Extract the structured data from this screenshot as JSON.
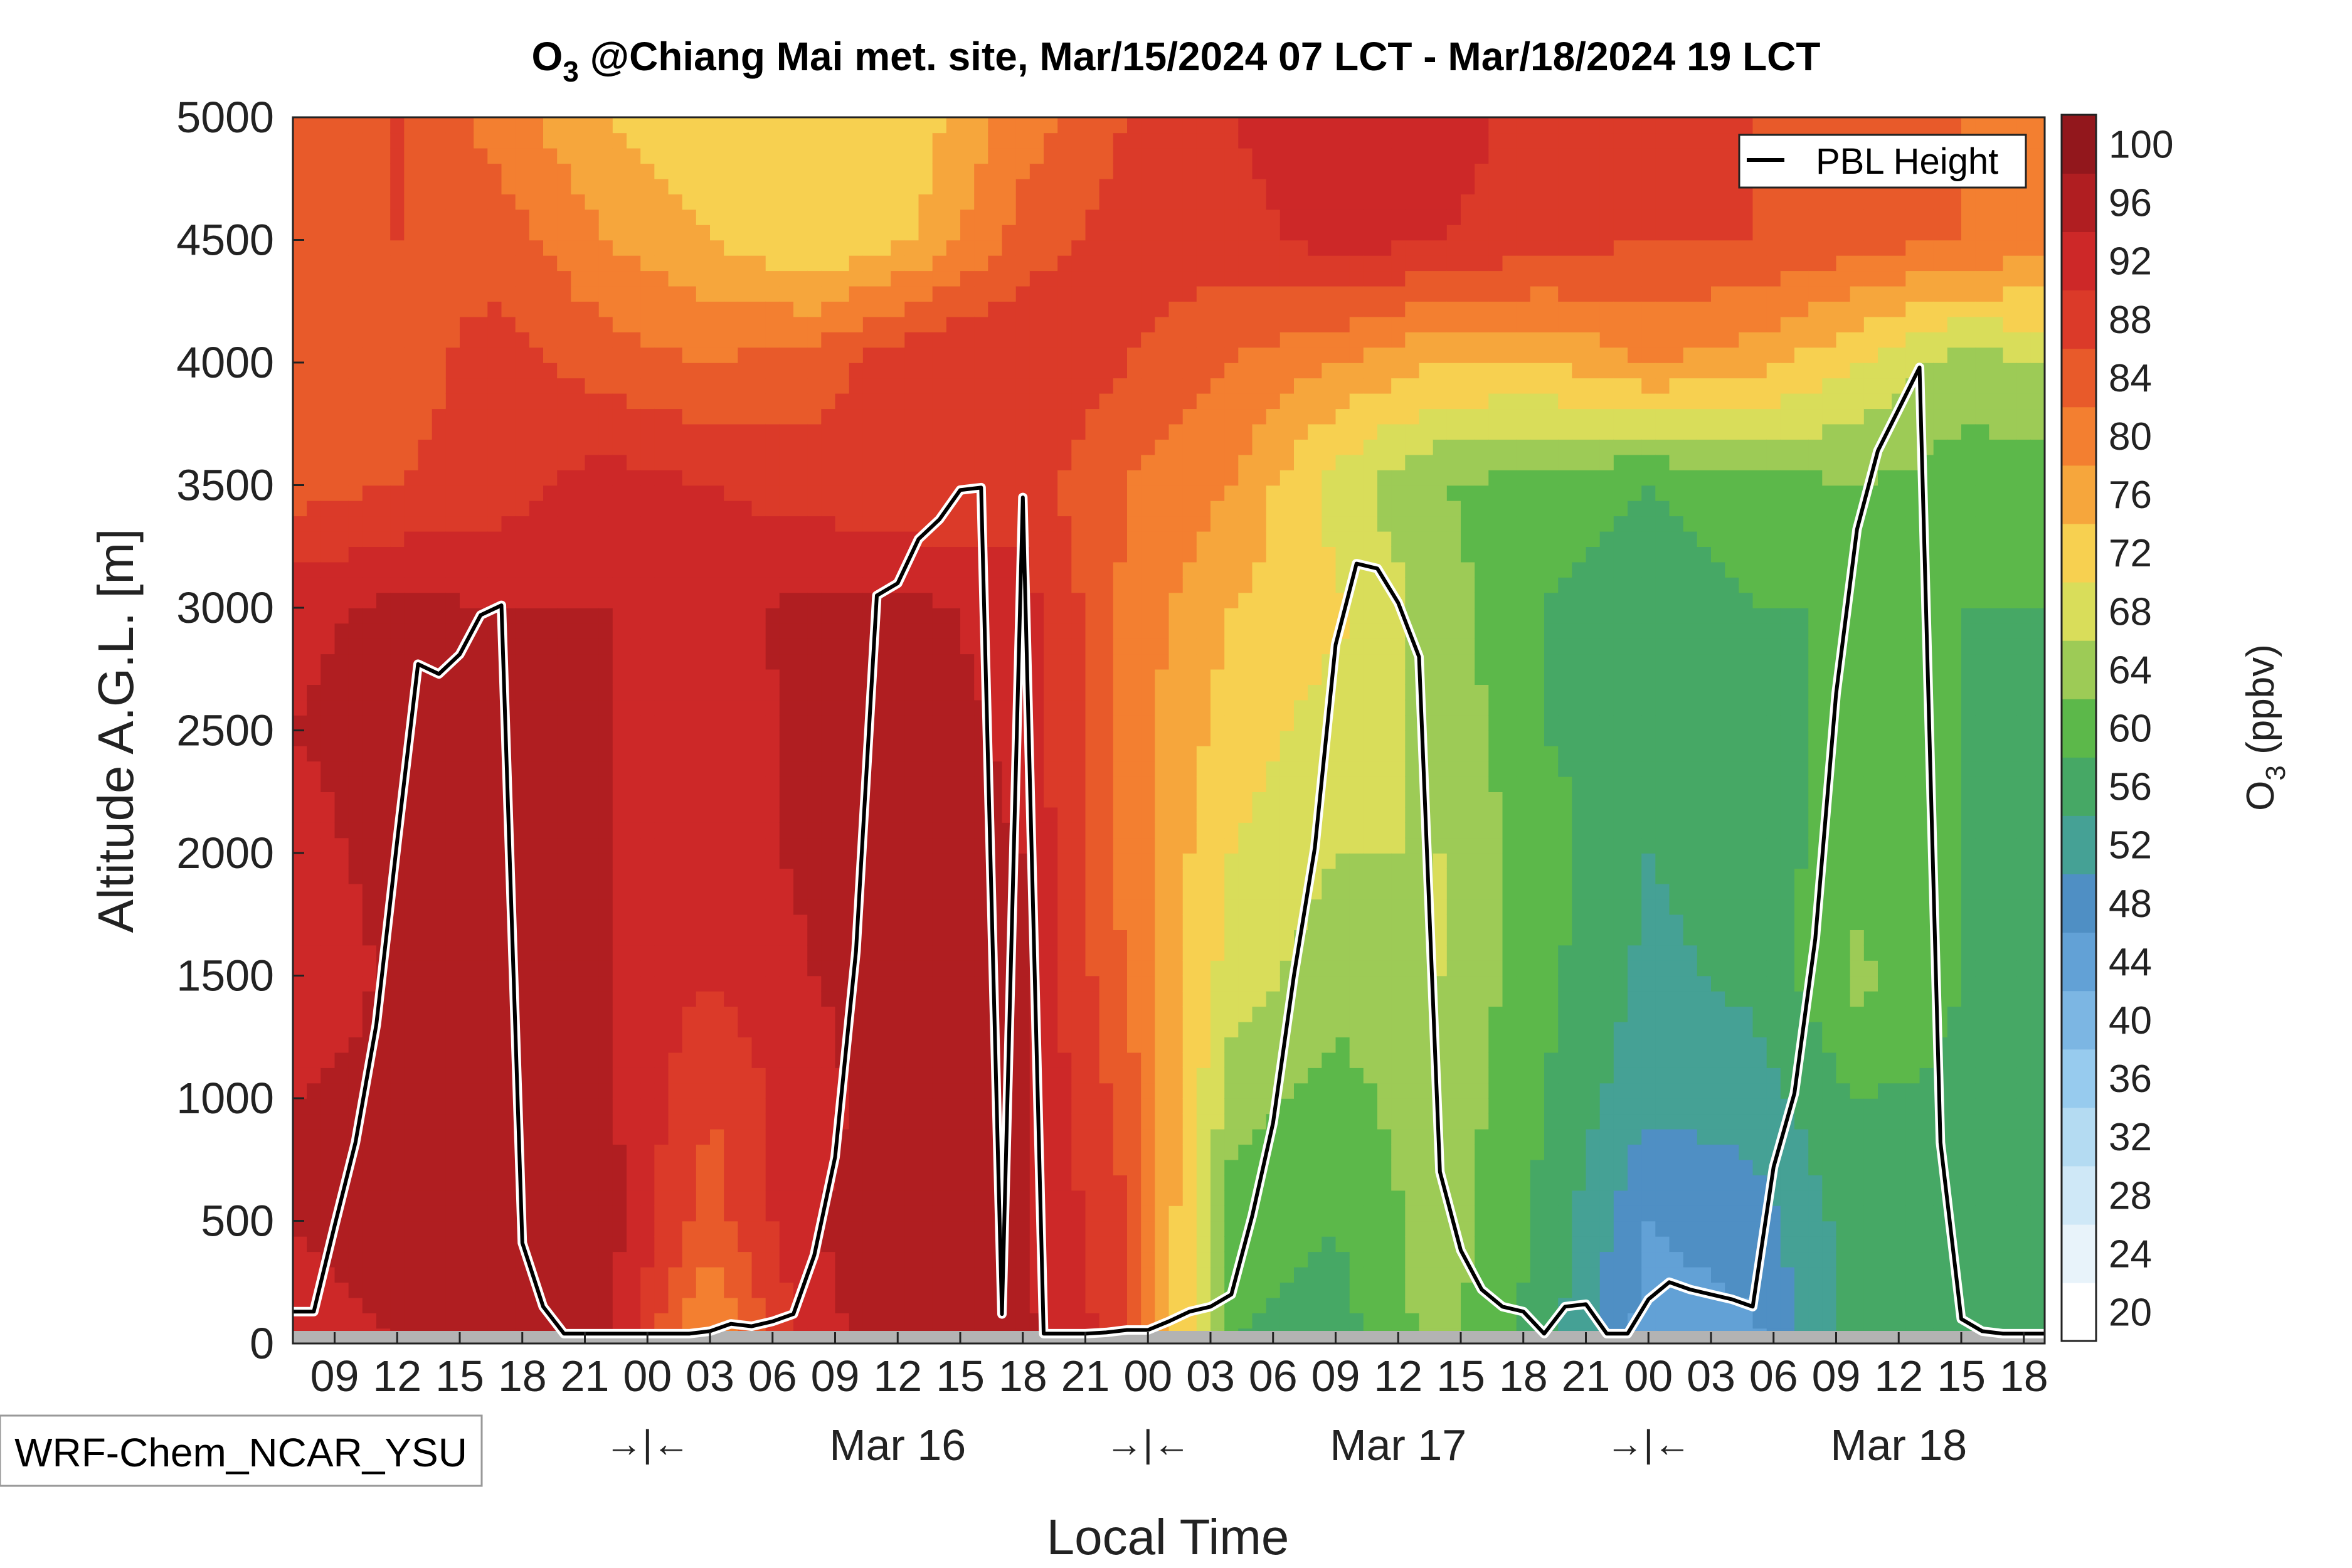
{
  "chart_data": {
    "type": "heatmap",
    "title_main": "O",
    "title_sub": "3",
    "title_rest": " @Chiang Mai met. site, Mar/15/2024 07 LCT - Mar/18/2024 19 LCT",
    "xlabel": "Local Time",
    "ylabel": "Altitude A.G.L. [m]",
    "ylim": [
      0,
      5000
    ],
    "yticks": [
      "0",
      "500",
      "1000",
      "1500",
      "2000",
      "2500",
      "3000",
      "3500",
      "4000",
      "4500",
      "5000"
    ],
    "time_range_hours": [
      7,
      91
    ],
    "hour_ticks": [
      {
        "h": 9,
        "label": "09"
      },
      {
        "h": 12,
        "label": "12"
      },
      {
        "h": 15,
        "label": "15"
      },
      {
        "h": 18,
        "label": "18"
      },
      {
        "h": 21,
        "label": "21"
      },
      {
        "h": 24,
        "label": "00"
      },
      {
        "h": 27,
        "label": "03"
      },
      {
        "h": 30,
        "label": "06"
      },
      {
        "h": 33,
        "label": "09"
      },
      {
        "h": 36,
        "label": "12"
      },
      {
        "h": 39,
        "label": "15"
      },
      {
        "h": 42,
        "label": "18"
      },
      {
        "h": 45,
        "label": "21"
      },
      {
        "h": 48,
        "label": "00"
      },
      {
        "h": 51,
        "label": "03"
      },
      {
        "h": 54,
        "label": "06"
      },
      {
        "h": 57,
        "label": "09"
      },
      {
        "h": 60,
        "label": "12"
      },
      {
        "h": 63,
        "label": "15"
      },
      {
        "h": 66,
        "label": "18"
      },
      {
        "h": 69,
        "label": "21"
      },
      {
        "h": 72,
        "label": "00"
      },
      {
        "h": 75,
        "label": "03"
      },
      {
        "h": 78,
        "label": "06"
      },
      {
        "h": 81,
        "label": "09"
      },
      {
        "h": 84,
        "label": "12"
      },
      {
        "h": 87,
        "label": "15"
      },
      {
        "h": 90,
        "label": "18"
      }
    ],
    "day_labels": [
      {
        "h": 36,
        "label": "Mar 16"
      },
      {
        "h": 60,
        "label": "Mar 17"
      },
      {
        "h": 84,
        "label": "Mar 18"
      }
    ],
    "midnight_markers": [
      {
        "h": 24,
        "label": "→|←"
      },
      {
        "h": 48,
        "label": "→|←"
      },
      {
        "h": 72,
        "label": "→|←"
      }
    ],
    "colorbar": {
      "label_main": "O",
      "label_sub": "3",
      "label_rest": " (ppbv)",
      "levels": [
        20,
        24,
        28,
        32,
        36,
        40,
        44,
        48,
        52,
        56,
        60,
        64,
        68,
        72,
        76,
        80,
        84,
        88,
        92,
        96,
        100
      ],
      "colors": [
        "#ffffff",
        "#e8f3fa",
        "#cfe8f7",
        "#b4dbf2",
        "#97cbee",
        "#7cb6e3",
        "#62a1d6",
        "#4f8fc4",
        "#45a195",
        "#46a865",
        "#5cb84a",
        "#9dcb56",
        "#d9dd5a",
        "#f7d050",
        "#f6a63c",
        "#f37f30",
        "#e85a2a",
        "#db3a29",
        "#cd2828",
        "#b01e21",
        "#92171c"
      ]
    },
    "o3_field_ppbv": {
      "time_hours": [
        7,
        12,
        17,
        22,
        27,
        32,
        37,
        42,
        47,
        52,
        57,
        62,
        67,
        72,
        77,
        82,
        87,
        91
      ],
      "altitude_m": [
        0,
        500,
        1000,
        1500,
        2000,
        2500,
        3000,
        3500,
        4000,
        4500,
        5000
      ],
      "rows": [
        [
          94,
          96,
          98,
          97,
          78,
          95,
          98,
          97,
          90,
          60,
          58,
          66,
          58,
          46,
          47,
          58,
          57,
          56
        ],
        [
          96,
          98,
          98,
          98,
          86,
          96,
          98,
          97,
          88,
          62,
          60,
          66,
          59,
          48,
          50,
          58,
          58,
          57
        ],
        [
          96,
          98,
          98,
          97,
          88,
          95,
          98,
          97,
          86,
          66,
          62,
          67,
          60,
          53,
          54,
          60,
          59,
          58
        ],
        [
          92,
          97,
          98,
          96,
          92,
          96,
          98,
          96,
          84,
          70,
          66,
          68,
          61,
          55,
          57,
          65,
          60,
          59
        ],
        [
          94,
          98,
          98,
          96,
          94,
          97,
          98,
          96,
          82,
          72,
          68,
          68,
          62,
          56,
          58,
          62,
          60,
          59
        ],
        [
          96,
          98,
          97,
          96,
          94,
          97,
          98,
          95,
          82,
          74,
          70,
          67,
          60,
          57,
          59,
          61,
          60,
          59
        ],
        [
          95,
          97,
          96,
          96,
          95,
          97,
          97,
          94,
          83,
          76,
          73,
          66,
          60,
          58,
          60,
          60,
          60,
          60
        ],
        [
          86,
          88,
          90,
          94,
          92,
          90,
          88,
          90,
          84,
          80,
          70,
          64,
          62,
          60,
          62,
          64,
          62,
          62
        ],
        [
          84,
          86,
          90,
          86,
          84,
          86,
          92,
          92,
          88,
          84,
          80,
          76,
          76,
          80,
          78,
          72,
          66,
          68
        ],
        [
          84,
          88,
          86,
          80,
          76,
          72,
          76,
          86,
          90,
          90,
          94,
          92,
          90,
          88,
          88,
          86,
          84,
          82
        ],
        [
          86,
          88,
          82,
          76,
          72,
          72,
          74,
          82,
          88,
          92,
          96,
          94,
          90,
          88,
          88,
          86,
          84,
          82
        ]
      ]
    },
    "pbl_height": {
      "label": "PBL Height",
      "t": [
        7,
        8,
        9,
        10,
        11,
        12,
        13,
        14,
        15,
        16,
        17,
        18,
        19,
        20,
        22,
        24,
        26,
        27,
        28,
        29,
        30,
        31,
        32,
        33,
        34,
        35,
        36,
        37,
        38,
        39,
        40,
        41,
        42,
        43,
        44,
        45,
        46,
        47,
        48,
        49,
        50,
        51,
        52,
        53,
        54,
        55,
        56,
        57,
        58,
        59,
        60,
        61,
        62,
        63,
        64,
        65,
        66,
        67,
        68,
        69,
        70,
        71,
        72,
        73,
        74,
        75,
        76,
        77,
        78,
        79,
        80,
        81,
        82,
        83,
        84,
        85,
        86,
        87,
        88,
        89,
        90,
        91
      ],
      "h": [
        130,
        130,
        480,
        820,
        1300,
        2050,
        2770,
        2730,
        2810,
        2970,
        3010,
        410,
        150,
        40,
        40,
        40,
        40,
        50,
        80,
        70,
        90,
        120,
        360,
        760,
        1600,
        3050,
        3100,
        3280,
        3360,
        3480,
        3490,
        120,
        3450,
        40,
        40,
        40,
        45,
        55,
        55,
        90,
        130,
        150,
        200,
        520,
        900,
        1500,
        2020,
        2850,
        3180,
        3160,
        3020,
        2800,
        700,
        380,
        220,
        150,
        130,
        40,
        150,
        160,
        40,
        40,
        180,
        250,
        220,
        200,
        180,
        150,
        720,
        1020,
        1650,
        2650,
        3320,
        3640,
        3810,
        3980,
        820,
        100,
        50,
        40,
        40,
        40
      ]
    },
    "model_label": "WRF-Chem_NCAR_YSU"
  }
}
